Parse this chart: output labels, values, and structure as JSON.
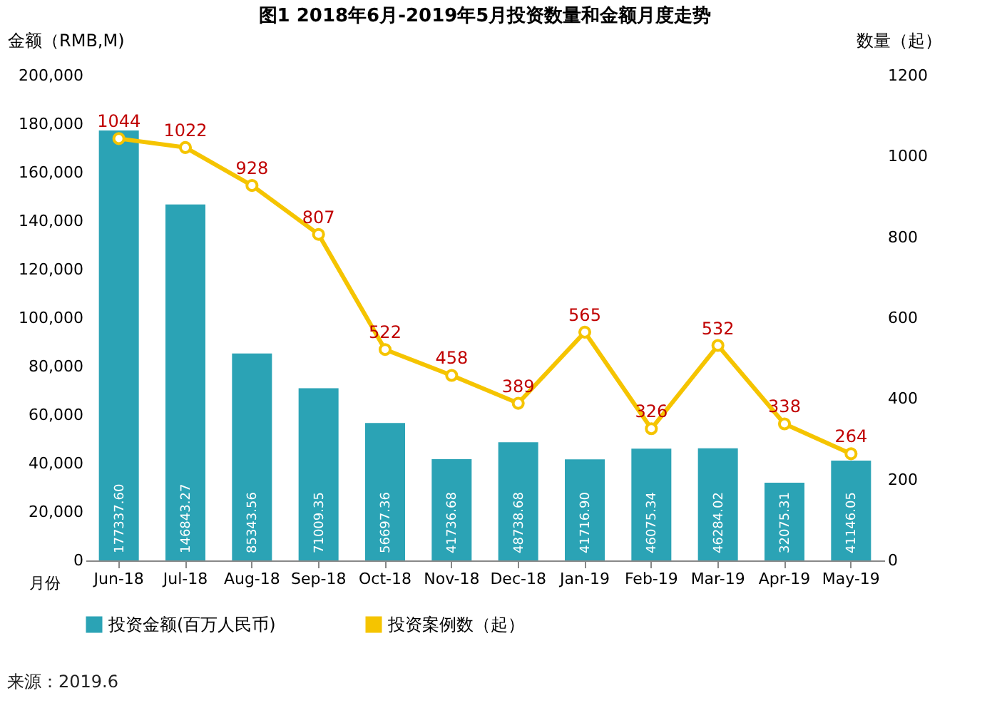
{
  "chart_data": {
    "type": "bar",
    "title": "图1 2018年6月-2019年5月投资数量和金额月度走势",
    "xlabel": "月份",
    "ylabel": "金额（RMB,M)",
    "y2label": "数量（起）",
    "categories": [
      "Jun-18",
      "Jul-18",
      "Aug-18",
      "Sep-18",
      "Oct-18",
      "Nov-18",
      "Dec-18",
      "Jan-19",
      "Feb-19",
      "Mar-19",
      "Apr-19",
      "May-19"
    ],
    "series": [
      {
        "name": "投资金额(百万人民币)",
        "color": "#2ba3b5",
        "values": [
          177337.6,
          146843.27,
          85343.56,
          71009.35,
          56697.36,
          41736.68,
          48738.68,
          41716.9,
          46075.34,
          46284.02,
          32075.31,
          41146.05
        ],
        "value_labels": [
          "177337.60",
          "146843.27",
          "85343.56",
          "71009.35",
          "56697.36",
          "41736.68",
          "48738.68",
          "41716.90",
          "46075.34",
          "46284.02",
          "32075.31",
          "41146.05"
        ]
      },
      {
        "name": "投资案例数（起）",
        "type": "line",
        "axis": "y2",
        "color": "#f5c400",
        "marker": "circle",
        "values": [
          1044,
          1022,
          928,
          807,
          522,
          458,
          389,
          565,
          326,
          532,
          338,
          264
        ],
        "value_labels": [
          "1044",
          "1022",
          "928",
          "807",
          "522",
          "458",
          "389",
          "565",
          "326",
          "532",
          "338",
          "264"
        ]
      }
    ],
    "ylim": [
      0,
      200000
    ],
    "yticks": [
      0,
      {
        "value": 20000,
        "label": "20,000"
      },
      {
        "value": 40000,
        "label": "40,000"
      },
      {
        "value": 60000,
        "label": "60,000"
      },
      {
        "value": 80000,
        "label": "80,000"
      },
      {
        "value": 100000,
        "label": "100,000"
      },
      {
        "value": 120000,
        "label": "120,000"
      },
      {
        "value": 140000,
        "label": "140,000"
      },
      {
        "value": 160000,
        "label": "160,000"
      },
      {
        "value": 180000,
        "label": "180,000"
      },
      {
        "value": 200000,
        "label": "200,000"
      }
    ],
    "y2lim": [
      0,
      1200
    ],
    "y2ticks": [
      0,
      200,
      400,
      600,
      800,
      1000,
      1200
    ],
    "grid": false,
    "legend": "bottom",
    "annotations": [
      "来源：2019.6"
    ]
  }
}
